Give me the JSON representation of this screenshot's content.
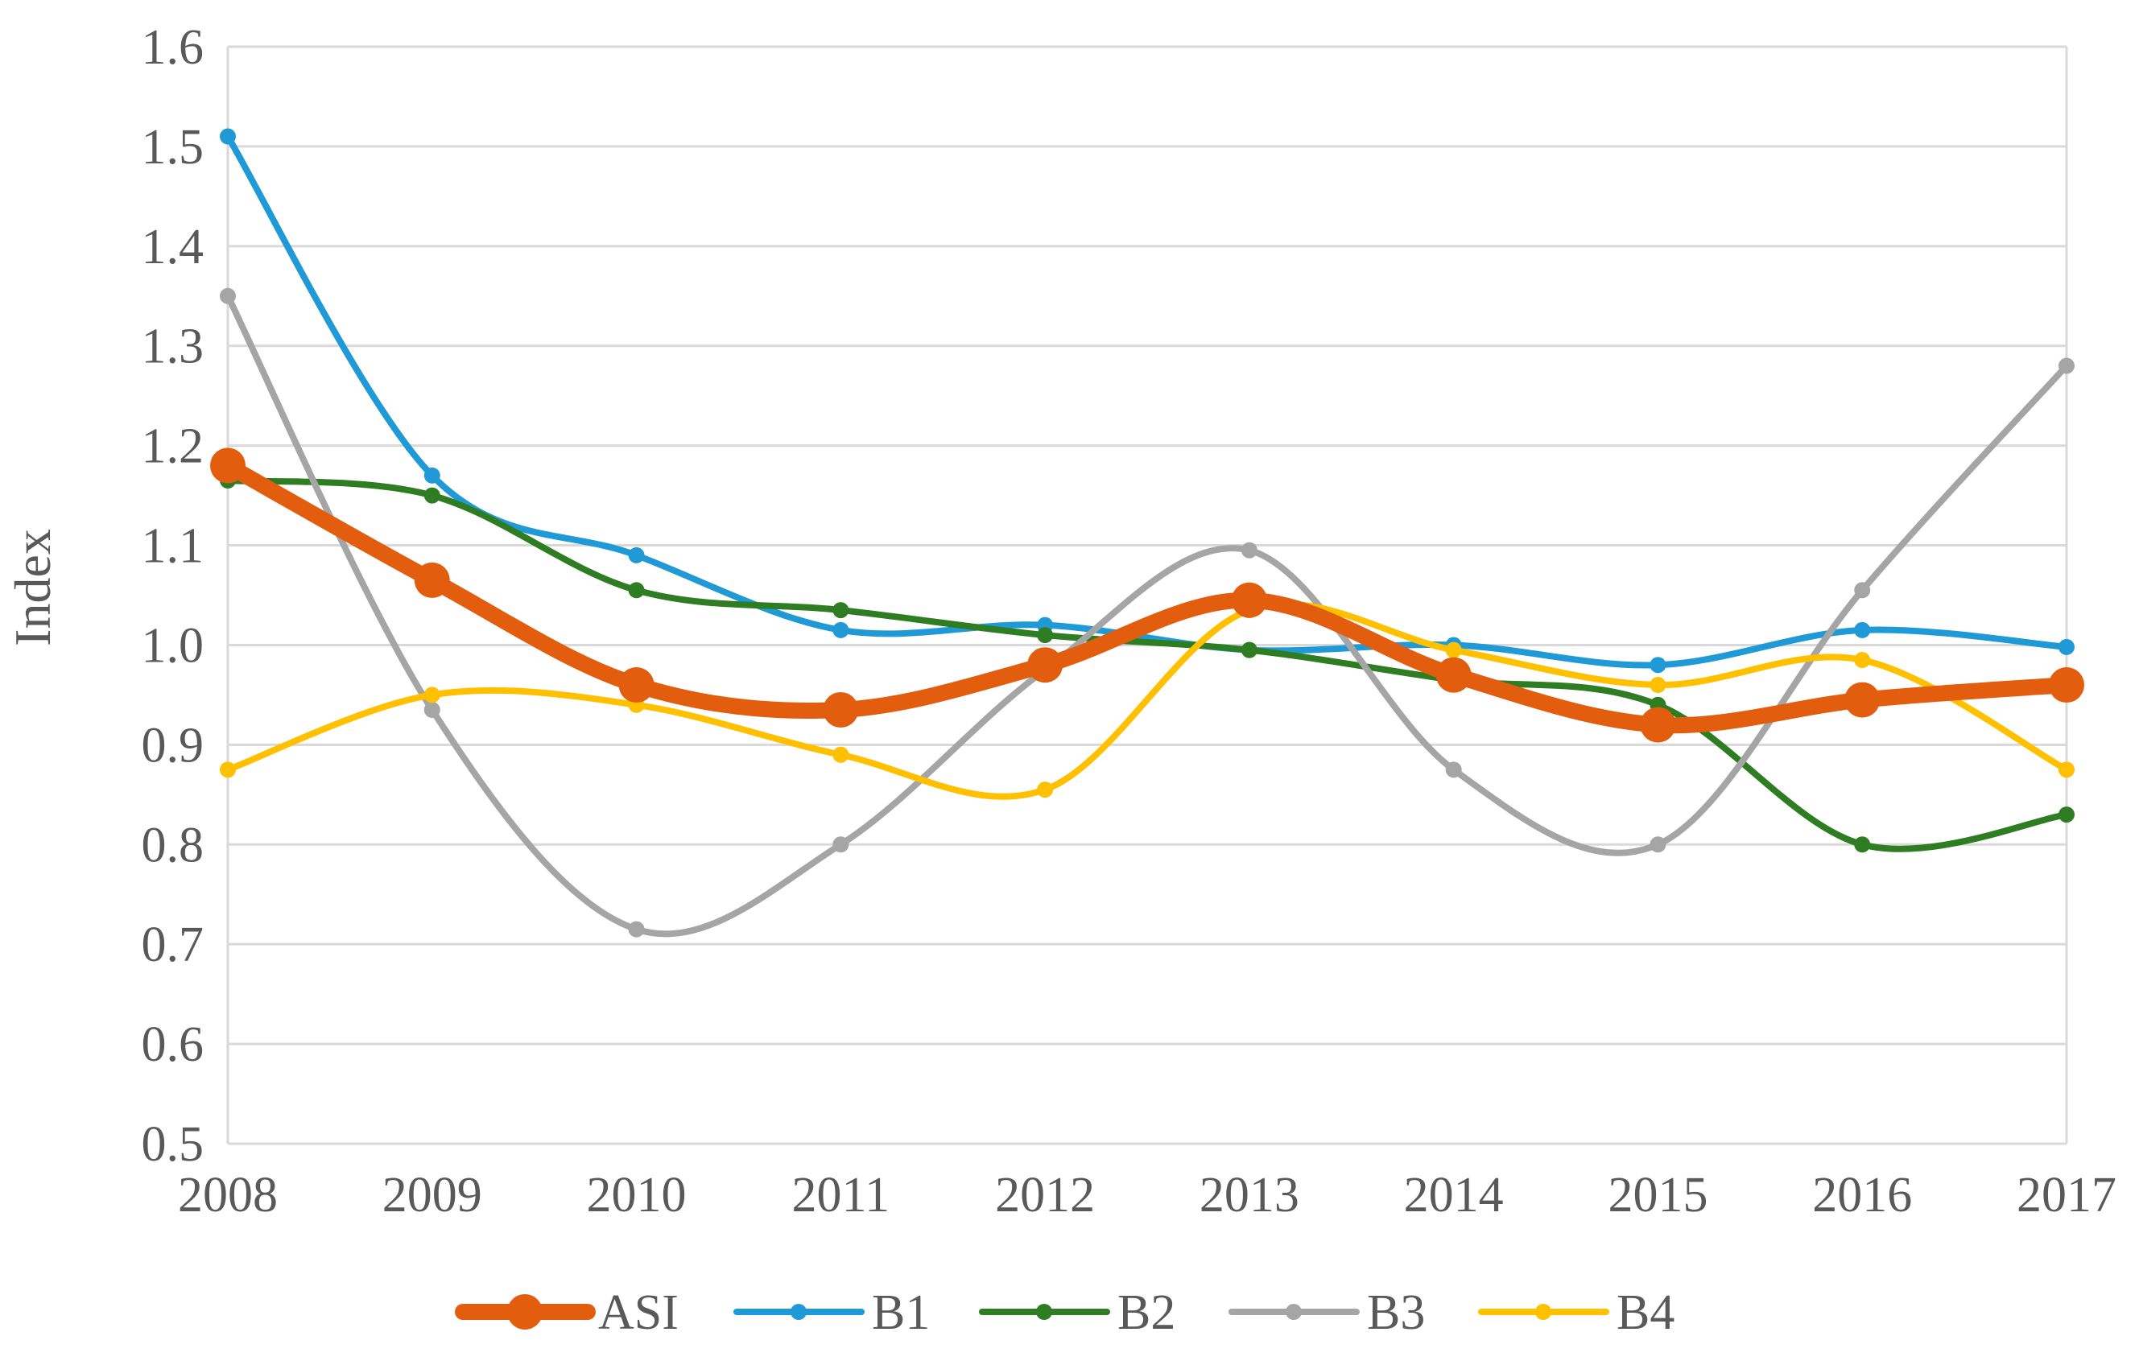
{
  "chart_data": {
    "type": "line",
    "title": "",
    "xlabel": "",
    "ylabel": "Index",
    "categories": [
      "2008",
      "2009",
      "2010",
      "2011",
      "2012",
      "2013",
      "2014",
      "2015",
      "2016",
      "2017"
    ],
    "y_ticks": [
      "0.5",
      "0.6",
      "0.7",
      "0.8",
      "0.9",
      "1.0",
      "1.1",
      "1.2",
      "1.3",
      "1.4",
      "1.5",
      "1.6"
    ],
    "ylim": [
      0.5,
      1.6
    ],
    "grid": true,
    "smooth": true,
    "legend_position": "bottom",
    "series": [
      {
        "name": "B1",
        "color": "#1f9ad6",
        "values": [
          1.51,
          1.17,
          1.09,
          1.015,
          1.02,
          0.995,
          1.0,
          0.98,
          1.015,
          0.998
        ]
      },
      {
        "name": "B2",
        "color": "#2e7d22",
        "values": [
          1.165,
          1.15,
          1.055,
          1.035,
          1.01,
          0.995,
          0.965,
          0.94,
          0.8,
          0.83
        ]
      },
      {
        "name": "B3",
        "color": "#a5a5a5",
        "values": [
          1.35,
          0.935,
          0.715,
          0.8,
          0.975,
          1.095,
          0.875,
          0.8,
          1.055,
          1.28
        ]
      },
      {
        "name": "B4",
        "color": "#ffc000",
        "values": [
          0.875,
          0.95,
          0.94,
          0.89,
          0.855,
          1.035,
          0.995,
          0.96,
          0.985,
          0.875
        ]
      },
      {
        "name": "ASI",
        "color": "#e35d0f",
        "values": [
          1.18,
          1.065,
          0.96,
          0.935,
          0.98,
          1.045,
          0.97,
          0.92,
          0.945,
          0.96
        ]
      }
    ],
    "legend_order": [
      "ASI",
      "B1",
      "B2",
      "B3",
      "B4"
    ]
  }
}
